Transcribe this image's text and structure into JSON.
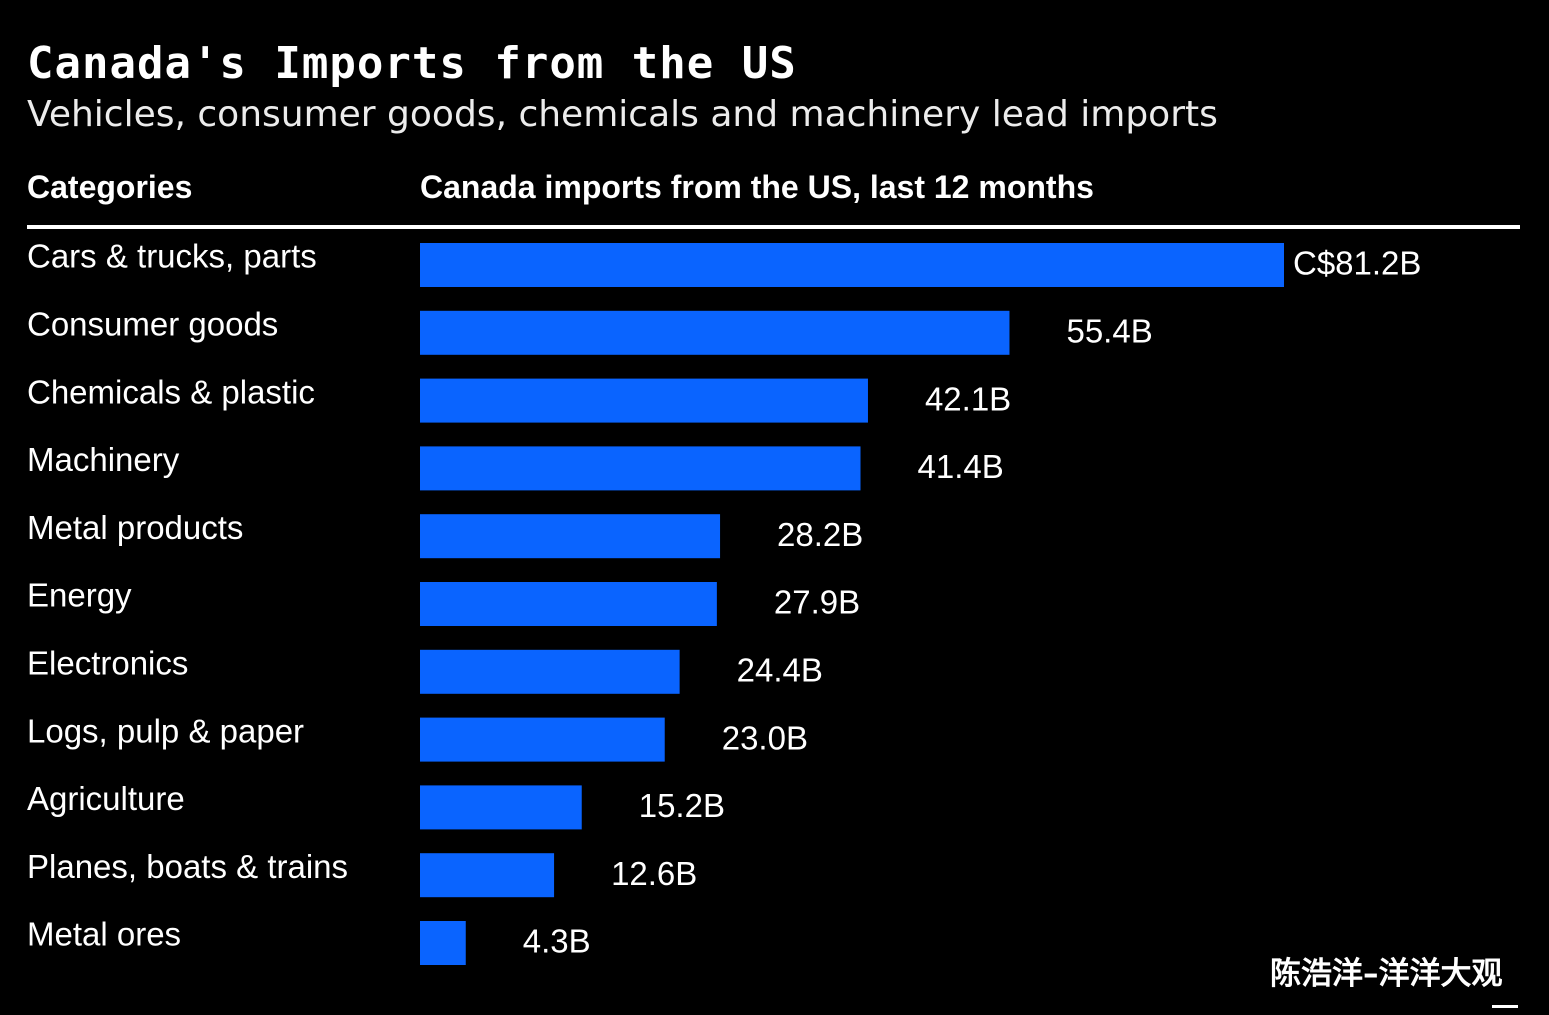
{
  "header": {
    "title": "Canada's Imports from the US",
    "subtitle": "Vehicles, consumer goods, chemicals and machinery lead imports",
    "categories_header": "Categories",
    "values_header": "Canada imports from the US, last 12 months"
  },
  "watermark": "陈浩洋–洋洋大观",
  "colors": {
    "bar": "#0a64ff",
    "background": "#000000",
    "text": "#ffffff"
  },
  "chart_data": {
    "type": "bar",
    "orientation": "horizontal",
    "categories": [
      "Cars & trucks, parts",
      "Consumer goods",
      "Chemicals & plastic",
      "Machinery",
      "Metal products",
      "Energy",
      "Electronics",
      "Logs, pulp & paper",
      "Agriculture",
      "Planes, boats & trains",
      "Metal ores"
    ],
    "values": [
      81.2,
      55.4,
      42.1,
      41.4,
      28.2,
      27.9,
      24.4,
      23.0,
      15.2,
      12.6,
      4.3
    ],
    "value_labels": [
      "C$81.2B",
      "55.4B",
      "42.1B",
      "41.4B",
      "28.2B",
      "27.9B",
      "24.4B",
      "23.0B",
      "15.2B",
      "12.6B",
      "4.3B"
    ],
    "xlim": [
      0,
      81.2
    ],
    "grid": false,
    "legend": "none"
  }
}
